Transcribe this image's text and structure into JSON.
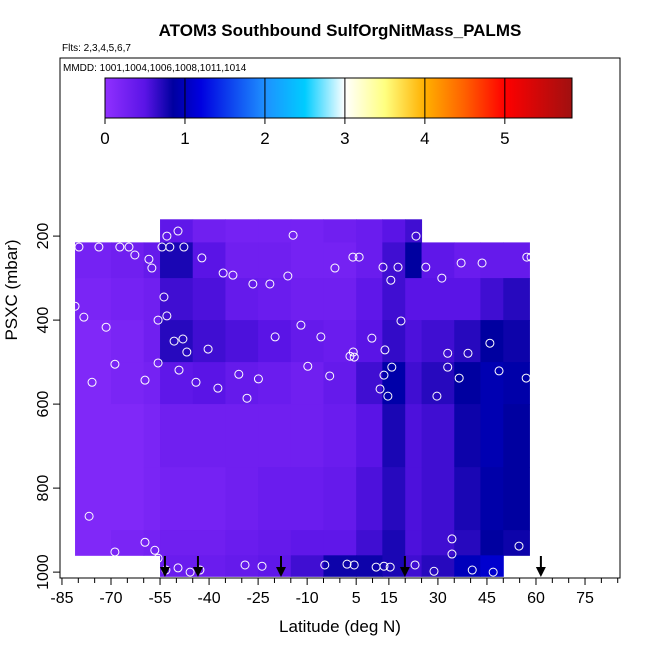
{
  "chart_data": {
    "type": "curtain",
    "title": "ATOM3 Southbound SulfOrgNitMass_PALMS",
    "subtitle": "Flts: 2,3,4,5,6,7",
    "annotation": "MMDD: 1001,1004,1006,1008,1011,1014",
    "x_label": "Latitude (deg N)",
    "y_label": "PSXC (mbar)",
    "xlim": [
      -85.6,
      85.7
    ],
    "ylim": [
      -224,
      1014
    ],
    "xticks": [
      -85,
      -70,
      -55,
      -40,
      -25,
      -10,
      5,
      15,
      30,
      45,
      60,
      75
    ],
    "xminorticks": [
      -80,
      -75,
      -65,
      -60,
      -50,
      -45,
      -35,
      -30,
      -20,
      -15,
      -5,
      0,
      10,
      20,
      25,
      35,
      40,
      50,
      55,
      65,
      70,
      80,
      85
    ],
    "yticks": [
      200,
      400,
      600,
      800,
      1000
    ],
    "colorbar_lim": [
      0,
      5.84
    ],
    "colorbar_ticks": [
      0,
      1,
      2,
      3,
      4,
      5
    ],
    "colorscale": [
      [
        0,
        "#9030ff"
      ],
      [
        0.5,
        "#5a14e6"
      ],
      [
        0.85,
        "#0000a0"
      ],
      [
        1.2,
        "#0000e0"
      ],
      [
        2,
        "#1e90ff"
      ],
      [
        2.5,
        "#00ccff"
      ],
      [
        3,
        "#ffffff"
      ],
      [
        3.5,
        "#ffff80"
      ],
      [
        4,
        "#ffb000"
      ],
      [
        4.5,
        "#ff6000"
      ],
      [
        5,
        "#ff0000"
      ],
      [
        5.84,
        "#a01010"
      ]
    ],
    "curtain": {
      "lat_edges": [
        -81,
        -70,
        -60,
        -55,
        -45,
        -35,
        -25,
        -15,
        -5,
        5,
        13,
        20,
        25,
        35,
        43,
        50,
        58
      ],
      "p_edges": [
        160,
        215,
        300,
        400,
        500,
        600,
        750,
        900,
        960,
        1010
      ],
      "values": [
        [
          null,
          null,
          null,
          0.45,
          0.3,
          0.25,
          0.25,
          0.25,
          0.3,
          0.35,
          0.5,
          0.6,
          null,
          null,
          null,
          null
        ],
        [
          0.25,
          0.3,
          0.4,
          0.75,
          0.5,
          0.3,
          0.3,
          0.25,
          0.25,
          0.35,
          0.6,
          0.85,
          0.45,
          0.35,
          0.4,
          0.4
        ],
        [
          0.2,
          0.25,
          0.3,
          0.6,
          0.55,
          0.4,
          0.35,
          0.3,
          0.3,
          0.45,
          0.6,
          0.5,
          0.5,
          0.5,
          0.6,
          0.7
        ],
        [
          0.15,
          0.2,
          0.3,
          0.7,
          0.6,
          0.55,
          0.5,
          0.4,
          0.35,
          0.5,
          0.65,
          0.55,
          0.6,
          0.7,
          0.85,
          0.8
        ],
        [
          0.15,
          0.2,
          0.25,
          0.45,
          0.5,
          0.4,
          0.35,
          0.3,
          0.4,
          0.6,
          0.9,
          0.6,
          0.7,
          0.85,
          0.95,
          0.9
        ],
        [
          0.15,
          0.15,
          0.2,
          0.3,
          0.3,
          0.3,
          0.3,
          0.3,
          0.35,
          0.5,
          0.75,
          0.55,
          0.6,
          0.8,
          0.95,
          0.85
        ],
        [
          0.15,
          0.15,
          0.2,
          0.25,
          0.25,
          0.3,
          0.35,
          0.35,
          0.4,
          0.55,
          0.7,
          0.55,
          0.6,
          0.75,
          0.9,
          0.85
        ],
        [
          0.15,
          0.2,
          0.25,
          0.3,
          0.3,
          0.35,
          0.4,
          0.45,
          0.45,
          0.6,
          0.75,
          0.55,
          0.6,
          0.7,
          0.85,
          0.8
        ],
        [
          null,
          null,
          null,
          0.35,
          0.35,
          0.4,
          0.45,
          0.6,
          0.8,
          0.8,
          0.75,
          0.6,
          0.7,
          1.0,
          1.1,
          null
        ]
      ]
    },
    "points": {
      "lat": [
        -79.8,
        -73.7,
        -67.3,
        -64.5,
        -62.7,
        -58.4,
        -57.5,
        -54.4,
        -52,
        -49.5,
        -47.7,
        -52.9,
        -42.2,
        -35.7,
        -32.7,
        -26.6,
        -21.4,
        -15.9,
        -14.3,
        -1.5,
        4,
        5.9,
        13.2,
        15.6,
        17.8,
        23.3,
        26.3,
        31.2,
        37.1,
        43.5,
        57.2,
        58.5,
        -81,
        -78.3,
        -71.5,
        -53.8,
        -55.6,
        -52.9,
        -50.7,
        -46.8,
        -40.3,
        -48,
        -19.8,
        -11.9,
        -5.8,
        3.1,
        4.1,
        4.4,
        9.8,
        13.8,
        18.7,
        15.9,
        33,
        33,
        39.2,
        45.9,
        48.7,
        36.5,
        57,
        -68.8,
        -59.6,
        -55.6,
        -49.2,
        -44,
        -37.3,
        -30.9,
        -24.9,
        -28.4,
        -9.8,
        -3.1,
        12.3,
        14.7,
        13.5,
        29.7,
        -75.8,
        -76.7,
        -68.8,
        -56.6,
        -55.6,
        -59.6,
        -53.2,
        -49.5,
        -45.8,
        -42.8,
        -29,
        -23.8,
        -4.6,
        2.2,
        4.4,
        11.1,
        13.5,
        15.4,
        23,
        28.8,
        34.3,
        34.3,
        40.5,
        46.9,
        54.8
      ],
      "p": [
        226,
        226,
        226,
        226,
        245,
        255,
        276,
        226,
        226,
        188,
        226,
        200,
        252,
        288,
        293,
        314,
        314,
        295,
        198,
        276,
        250,
        250,
        274,
        305,
        274,
        200,
        274,
        300,
        264,
        264,
        250,
        250,
        367,
        393,
        417,
        345,
        400,
        390,
        450,
        476,
        469,
        445,
        440,
        412,
        440,
        486,
        476,
        488,
        443,
        471,
        402,
        512,
        512,
        479,
        479,
        455,
        521,
        538,
        538,
        505,
        543,
        502,
        519,
        548,
        562,
        529,
        540,
        586,
        510,
        533,
        564,
        581,
        531,
        581,
        548,
        867,
        952,
        948,
        967,
        929,
        995,
        990,
        1000,
        995,
        983,
        986,
        983,
        981,
        983,
        988,
        986,
        988,
        983,
        998,
        921,
        957,
        995,
        1000,
        938
      ]
    },
    "arrows_lat": [
      -53.5,
      -43.4,
      -18,
      19.9,
      61.5
    ]
  }
}
